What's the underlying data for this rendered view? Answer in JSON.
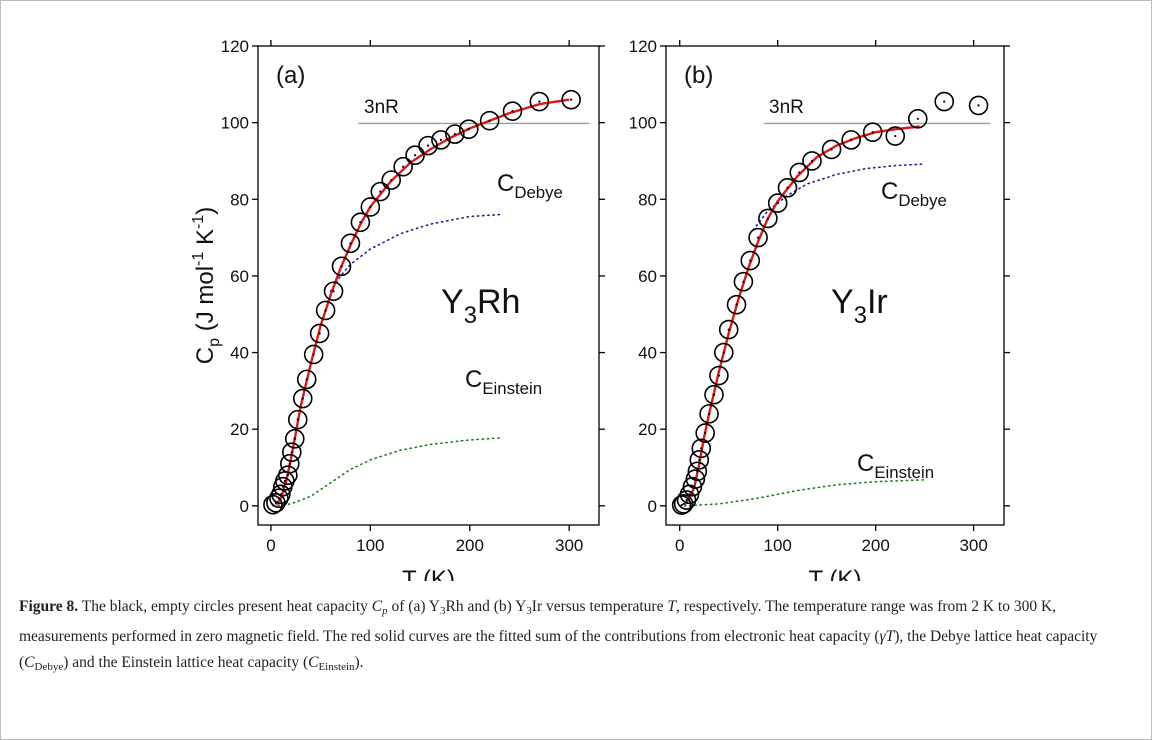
{
  "chart_data": [
    {
      "type": "scatter",
      "xlabel": "T (K)",
      "ylabel": [
        {
          "text": "C",
          "pos": "base"
        },
        {
          "text": "p",
          "pos": "sub"
        },
        {
          "text": " (J mol",
          "pos": "base"
        },
        {
          "text": "-1",
          "pos": "sup"
        },
        {
          "text": " K",
          "pos": "base"
        },
        {
          "text": "-1",
          "pos": "sup"
        },
        {
          "text": ")",
          "pos": "base"
        }
      ],
      "xlim": [
        -13,
        330
      ],
      "ylim": [
        -5,
        120
      ],
      "xticks": [
        0,
        100,
        200,
        300
      ],
      "yticks": [
        0,
        20,
        40,
        60,
        80,
        100,
        120
      ],
      "annotations": [
        {
          "text": "(a)"
        },
        {
          "text": "3nR"
        },
        {
          "text": "C",
          "sub": "Debye"
        },
        {
          "text": "C",
          "sub": "Einstein"
        },
        {
          "text": "Y",
          "sub": "3",
          "after": "Rh"
        }
      ],
      "series": [
        {
          "mode": "markers",
          "color": "#000000",
          "x": [
            2,
            5,
            8,
            10,
            12,
            14,
            17,
            19,
            21,
            24,
            27,
            32,
            36,
            43,
            49,
            55,
            63,
            71,
            80,
            90,
            100,
            110,
            121,
            133,
            145,
            158,
            171,
            185,
            199,
            220,
            243,
            270,
            302
          ],
          "values": [
            0.3,
            0.8,
            2,
            3,
            5,
            6.5,
            8,
            11,
            14,
            17.5,
            22.5,
            28,
            33,
            39.5,
            45,
            51,
            56,
            62.5,
            68.5,
            74,
            78,
            82,
            85,
            88.5,
            91.5,
            94,
            95.5,
            97,
            98.3,
            100.5,
            103,
            105.5,
            106
          ]
        },
        {
          "mode": "solid",
          "color": "#e01515",
          "x": [
            5,
            10,
            15,
            20,
            25,
            30,
            40,
            50,
            60,
            70,
            80,
            90,
            100,
            120,
            140,
            160,
            180,
            200,
            220,
            240,
            270,
            300
          ],
          "values": [
            0.3,
            2,
            6,
            12,
            19,
            26,
            37,
            47,
            55,
            62,
            68,
            73.5,
            78,
            84.5,
            89.5,
            93,
            96,
            98.5,
            100.5,
            102.5,
            104.8,
            106
          ]
        },
        {
          "mode": "dotted",
          "color": "#1a1aa0",
          "x": [
            60,
            70,
            80,
            100,
            130,
            160,
            200,
            230
          ],
          "values": [
            56,
            60,
            63,
            67,
            71,
            73.5,
            75.5,
            76
          ]
        },
        {
          "mode": "dotted",
          "color": "#1a7a1a",
          "x": [
            2,
            20,
            40,
            60,
            80,
            100,
            130,
            160,
            200,
            230
          ],
          "values": [
            0,
            0.5,
            2.5,
            6,
            9.5,
            12,
            14.5,
            16,
            17.2,
            17.7
          ]
        },
        {
          "mode": "solid",
          "color": "#999999",
          "x": [
            88,
            320
          ],
          "values": [
            99.8,
            99.8
          ]
        }
      ]
    },
    {
      "type": "scatter",
      "xlabel": "T (K)",
      "xlim": [
        -14,
        331
      ],
      "ylim": [
        -5,
        120
      ],
      "xticks": [
        0,
        100,
        200,
        300
      ],
      "yticks": [
        0,
        20,
        40,
        60,
        80,
        100,
        120
      ],
      "annotations": [
        {
          "text": "(b)"
        },
        {
          "text": "3nR"
        },
        {
          "text": "C",
          "sub": "Debye"
        },
        {
          "text": "C",
          "sub": "Einstein"
        },
        {
          "text": "Y",
          "sub": "3",
          "after": "Ir"
        }
      ],
      "series": [
        {
          "mode": "markers",
          "color": "#000000",
          "x": [
            2,
            4,
            7,
            10,
            13,
            16,
            18,
            20,
            22,
            26,
            30,
            35,
            40,
            45,
            50,
            58,
            65,
            72,
            80,
            90,
            100,
            110,
            122,
            135,
            155,
            175,
            197,
            220,
            243,
            270,
            305
          ],
          "values": [
            0.2,
            0.5,
            1.5,
            3,
            5,
            7,
            9,
            12,
            15,
            19,
            24,
            29,
            34,
            40,
            46,
            52.5,
            58.5,
            64,
            70,
            75,
            79,
            83,
            87,
            90,
            93,
            95.5,
            97.5,
            96.5,
            101,
            105.5,
            104.5
          ]
        },
        {
          "mode": "solid",
          "color": "#e01515",
          "x": [
            5,
            10,
            15,
            20,
            25,
            30,
            40,
            50,
            60,
            70,
            80,
            90,
            100,
            120,
            140,
            160,
            180,
            200,
            220,
            245
          ],
          "values": [
            0.3,
            2,
            5,
            11,
            18,
            24,
            35,
            45,
            54,
            62,
            69,
            75,
            79.5,
            86,
            91,
            94,
            96,
            97.5,
            98.3,
            99
          ]
        },
        {
          "mode": "dotted",
          "color": "#1a1aa0",
          "x": [
            75,
            90,
            110,
            130,
            160,
            190,
            220,
            250
          ],
          "values": [
            72,
            77,
            81,
            84,
            86.5,
            88,
            88.8,
            89.2
          ]
        },
        {
          "mode": "dotted",
          "color": "#1a7a1a",
          "x": [
            5,
            40,
            80,
            120,
            160,
            200,
            250
          ],
          "values": [
            0,
            0.5,
            2,
            4,
            5.5,
            6.3,
            6.8
          ]
        },
        {
          "mode": "solid",
          "color": "#999999",
          "x": [
            86,
            317
          ],
          "values": [
            99.8,
            99.8
          ]
        }
      ]
    }
  ],
  "caption": [
    {
      "text": "Figure 8.",
      "style": "bold"
    },
    {
      "text": "  The black, empty circles present heat capacity ",
      "style": "normal"
    },
    {
      "text": "C",
      "style": "italic"
    },
    {
      "text": "p",
      "style": "italic-sub"
    },
    {
      "text": " of (a) Y",
      "style": "normal"
    },
    {
      "text": "3",
      "style": "sub"
    },
    {
      "text": "Rh and (b) Y",
      "style": "normal"
    },
    {
      "text": "3",
      "style": "sub"
    },
    {
      "text": "Ir versus temperature ",
      "style": "normal"
    },
    {
      "text": "T",
      "style": "italic"
    },
    {
      "text": ", respectively. The temperature range was from 2 K to 300 K, measurements performed in zero magnetic field. The red solid curves are the fitted sum of the contributions from electronic heat capacity (",
      "style": "normal"
    },
    {
      "text": "γT",
      "style": "italic"
    },
    {
      "text": "), the Debye lattice heat capacity (",
      "style": "normal"
    },
    {
      "text": "C",
      "style": "italic"
    },
    {
      "text": "Debye",
      "style": "sub"
    },
    {
      "text": ") and the Einstein lattice heat capacity (",
      "style": "normal"
    },
    {
      "text": "C",
      "style": "italic"
    },
    {
      "text": "Einstein",
      "style": "sub"
    },
    {
      "text": ").",
      "style": "normal"
    }
  ]
}
